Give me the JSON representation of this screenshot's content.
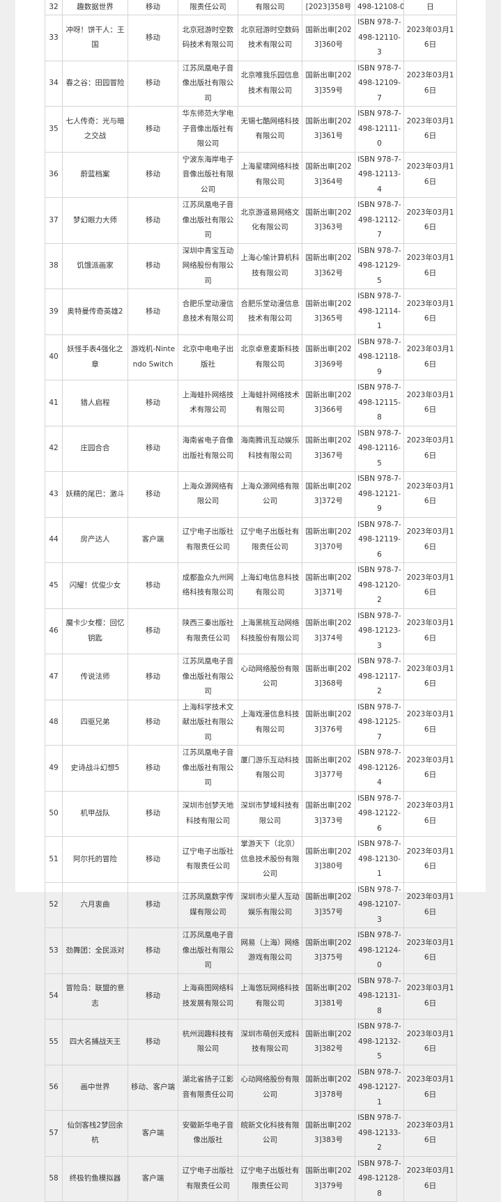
{
  "table": {
    "rows": [
      [
        "32",
        "趣数据世界",
        "移动",
        "限责任公司",
        "有限公司",
        "[2023]358号",
        "498-12108-0",
        "日"
      ],
      [
        "33",
        "冲呀！饼干人：王国",
        "移动",
        "北京冠游时空数码技术有限公司",
        "北京冠游时空数码技术有限公司",
        "国新出审[2023]360号",
        "ISBN 978-7-498-12110-3",
        "2023年03月16日"
      ],
      [
        "34",
        "春之谷：田园冒险",
        "移动",
        "江苏凤凰电子音像出版社有限公司",
        "北京唯我乐园信息技术有限公司",
        "国新出审[2023]359号",
        "ISBN 978-7-498-12109-7",
        "2023年03月16日"
      ],
      [
        "35",
        "七人传奇：光与暗之交战",
        "移动",
        "华东师范大学电子音像出版社有限公司",
        "无锡七酷网络科技有限公司",
        "国新出审[2023]361号",
        "ISBN 978-7-498-12111-0",
        "2023年03月16日"
      ],
      [
        "36",
        "蔚蓝档案",
        "移动",
        "宁波东海岸电子音像出版社有限公司",
        "上海星啸网络科技有限公司",
        "国新出审[2023]364号",
        "ISBN 978-7-498-12113-4",
        "2023年03月16日"
      ],
      [
        "37",
        "梦幻眼力大师",
        "移动",
        "江苏凤凰电子音像出版社有限公司",
        "北京游道易网络文化有限公司",
        "国新出审[2023]363号",
        "ISBN 978-7-498-12112-7",
        "2023年03月16日"
      ],
      [
        "38",
        "饥饿派画家",
        "移动",
        "深圳中青宝互动网络股份有限公司",
        "上海心愉计算机科技有限公司",
        "国新出审[2023]362号",
        "ISBN 978-7-498-12129-5",
        "2023年03月16日"
      ],
      [
        "39",
        "奥特曼传奇英雄2",
        "移动",
        "合肥乐堂动漫信息技术有限公司",
        "合肥乐堂动漫信息技术有限公司",
        "国新出审[2023]365号",
        "ISBN 978-7-498-12114-1",
        "2023年03月16日"
      ],
      [
        "40",
        "妖怪手表4强化之章",
        "游戏机-Nintendo Switch",
        "北京中电电子出版社",
        "北京卓意麦斯科技有限公司",
        "国新出审[2023]369号",
        "ISBN 978-7-498-12118-9",
        "2023年03月16日"
      ],
      [
        "41",
        "猎人启程",
        "移动",
        "上海蛙扑网络技术有限公司",
        "上海蛙扑网络技术有限公司",
        "国新出审[2023]366号",
        "ISBN 978-7-498-12115-8",
        "2023年03月16日"
      ],
      [
        "42",
        "庄园合合",
        "移动",
        "海南省电子音像出版社有限公司",
        "海南腾讯互动娱乐科技有限公司",
        "国新出审[2023]367号",
        "ISBN 978-7-498-12116-5",
        "2023年03月16日"
      ],
      [
        "43",
        "妖精的尾巴：激斗",
        "移动",
        "上海众源网络有限公司",
        "上海众源网络有限公司",
        "国新出审[2023]372号",
        "ISBN 978-7-498-12121-9",
        "2023年03月16日"
      ],
      [
        "44",
        "房产达人",
        "客户端",
        "辽宁电子出版社有限责任公司",
        "辽宁电子出版社有限责任公司",
        "国新出审[2023]370号",
        "ISBN 978-7-498-12119-6",
        "2023年03月16日"
      ],
      [
        "45",
        "闪耀！优俊少女",
        "移动",
        "成都盈众九州网络科技有限公司",
        "上海幻电信息科技有限公司",
        "国新出审[2023]371号",
        "ISBN 978-7-498-12120-2",
        "2023年03月16日"
      ],
      [
        "46",
        "魔卡少女樱：回忆钥匙",
        "移动",
        "陕西三秦出版社有限责任公司",
        "上海黑桃互动网络科技股份有限公司",
        "国新出审[2023]374号",
        "ISBN 978-7-498-12123-3",
        "2023年03月16日"
      ],
      [
        "47",
        "传说法师",
        "移动",
        "江苏凤凰电子音像出版社有限公司",
        "心动网络股份有限公司",
        "国新出审[2023]368号",
        "ISBN 978-7-498-12117-2",
        "2023年03月16日"
      ],
      [
        "48",
        "四驱兄弟",
        "移动",
        "上海科学技术文献出版社有限公司",
        "上海戏漫信息科技有限公司",
        "国新出审[2023]376号",
        "ISBN 978-7-498-12125-7",
        "2023年03月16日"
      ],
      [
        "49",
        "史诗战斗幻想5",
        "移动",
        "江苏凤凰电子音像出版社有限公司",
        "厦门游乐互动科技有限公司",
        "国新出审[2023]377号",
        "ISBN 978-7-498-12126-4",
        "2023年03月16日"
      ],
      [
        "50",
        "机甲战队",
        "移动",
        "深圳市创梦天地科技有限公司",
        "深圳市梦域科技有限公司",
        "国新出审[2023]373号",
        "ISBN 978-7-498-12122-6",
        "2023年03月16日"
      ],
      [
        "51",
        "阿尔托的冒险",
        "移动",
        "辽宁电子出版社有限责任公司",
        "掌游天下（北京）信息技术股份有限公司",
        "国新出审[2023]380号",
        "ISBN 978-7-498-12130-1",
        "2023年03月16日"
      ],
      [
        "52",
        "六月衷曲",
        "移动",
        "江苏凤凰数字传媒有限公司",
        "深圳市火星人互动娱乐有限公司",
        "国新出审[2023]357号",
        "ISBN 978-7-498-12107-3",
        "2023年03月16日"
      ],
      [
        "53",
        "劲舞团：全民派对",
        "移动",
        "江苏凤凰电子音像出版社有限公司",
        "网易（上海）网络游戏有限公司",
        "国新出审[2023]375号",
        "ISBN 978-7-498-12124-0",
        "2023年03月16日"
      ],
      [
        "54",
        "冒险岛：联盟的意志",
        "移动",
        "上海商图网络科技发展有限公司",
        "上海悠玩网络科技有限公司",
        "国新出审[2023]381号",
        "ISBN 978-7-498-12131-8",
        "2023年03月16日"
      ],
      [
        "55",
        "四大名捕战天王",
        "移动",
        "杭州润趣科技有限公司",
        "深圳市萌创天成科技有限公司",
        "国新出审[2023]382号",
        "ISBN 978-7-498-12132-5",
        "2023年03月16日"
      ],
      [
        "56",
        "画中世界",
        "移动、客户端",
        "湖北省扬子江影音有限责任公司",
        "心动网络股份有限公司",
        "国新出审[2023]378号",
        "ISBN 978-7-498-12127-1",
        "2023年03月16日"
      ],
      [
        "57",
        "仙剑客栈2梦回余杭",
        "客户端",
        "安徽新华电子音像出版社",
        "皖新文化科技有限公司",
        "国新出审[2023]383号",
        "ISBN 978-7-498-12133-2",
        "2023年03月16日"
      ],
      [
        "58",
        "终极钓鱼模拟器",
        "客户端",
        "辽宁电子出版社有限责任公司",
        "辽宁电子出版社有限责任公司",
        "国新出审[2023]379号",
        "ISBN 978-7-498-12128-8",
        "2023年03月16日"
      ]
    ]
  }
}
